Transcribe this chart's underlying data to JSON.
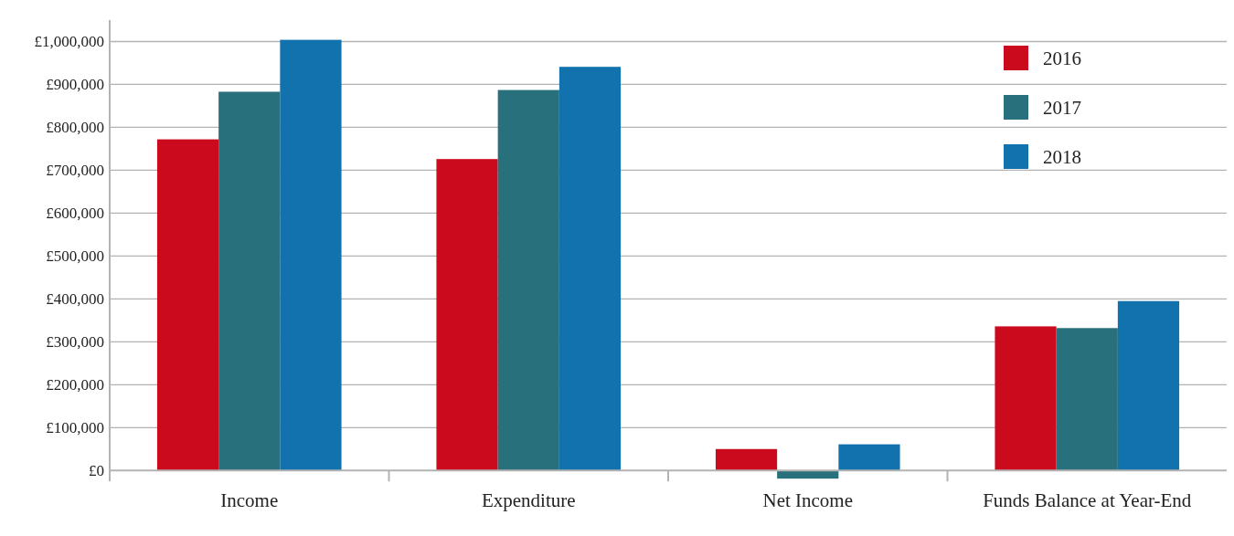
{
  "chart_data": {
    "type": "bar",
    "categories": [
      "Income",
      "Expenditure",
      "Net Income",
      "Funds Balance at Year-End"
    ],
    "series": [
      {
        "name": "2016",
        "color": "#cc0a1e",
        "values": [
          772000,
          726000,
          50000,
          336000
        ]
      },
      {
        "name": "2017",
        "color": "#28707b",
        "values": [
          883000,
          887000,
          -19000,
          332000
        ]
      },
      {
        "name": "2018",
        "color": "#1172ae",
        "values": [
          1004000,
          941000,
          61000,
          395000
        ]
      }
    ],
    "ylim": [
      -25000,
      1050000
    ],
    "yticks": [
      {
        "value": 0,
        "label": "£0"
      },
      {
        "value": 100000,
        "label": "£100,000"
      },
      {
        "value": 200000,
        "label": "£200,000"
      },
      {
        "value": 300000,
        "label": "£300,000"
      },
      {
        "value": 400000,
        "label": "£400,000"
      },
      {
        "value": 500000,
        "label": "£500,000"
      },
      {
        "value": 600000,
        "label": "£600,000"
      },
      {
        "value": 700000,
        "label": "£700,000"
      },
      {
        "value": 800000,
        "label": "£800,000"
      },
      {
        "value": 900000,
        "label": "£900,000"
      },
      {
        "value": 1000000,
        "label": "£1,000,000"
      }
    ],
    "grid": "y",
    "legend": "top right"
  }
}
